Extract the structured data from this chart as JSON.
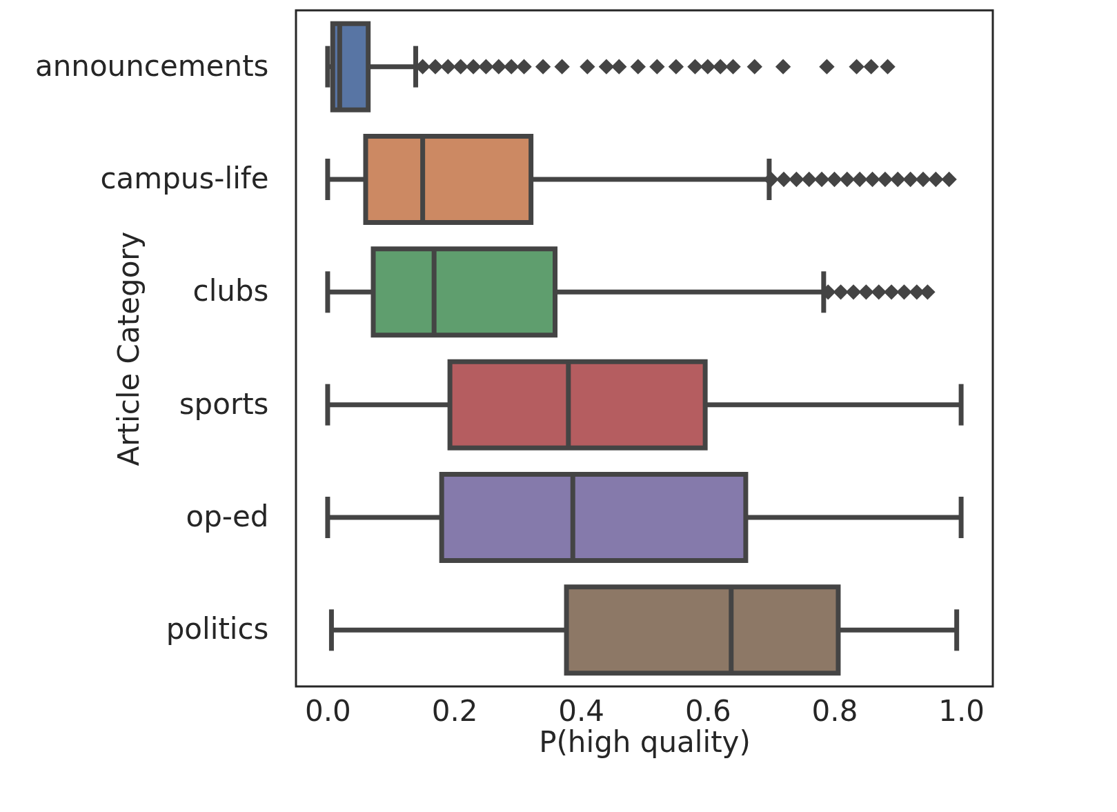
{
  "chart_data": {
    "type": "box",
    "orientation": "horizontal",
    "categories": [
      "announcements",
      "campus-life",
      "clubs",
      "sports",
      "op-ed",
      "politics"
    ],
    "colors": [
      "#5875a4",
      "#cc8963",
      "#5f9e6e",
      "#b55d60",
      "#857aab",
      "#8d7866"
    ],
    "boxes": [
      {
        "low": 0.0,
        "q1": 0.008,
        "median": 0.019,
        "q3": 0.064,
        "high": 0.139,
        "outliers": [
          0.15,
          0.17,
          0.19,
          0.21,
          0.23,
          0.25,
          0.27,
          0.29,
          0.31,
          0.34,
          0.37,
          0.41,
          0.44,
          0.46,
          0.49,
          0.52,
          0.55,
          0.58,
          0.6,
          0.62,
          0.64,
          0.674,
          0.719,
          0.788,
          0.835,
          0.858,
          0.884
        ]
      },
      {
        "low": 0.0,
        "q1": 0.06,
        "median": 0.15,
        "q3": 0.321,
        "high": 0.697,
        "outliers": [
          0.7,
          0.72,
          0.74,
          0.76,
          0.78,
          0.8,
          0.82,
          0.84,
          0.86,
          0.88,
          0.9,
          0.92,
          0.94,
          0.96,
          0.981
        ]
      },
      {
        "low": 0.0,
        "q1": 0.072,
        "median": 0.168,
        "q3": 0.359,
        "high": 0.783,
        "outliers": [
          0.79,
          0.81,
          0.83,
          0.85,
          0.87,
          0.89,
          0.91,
          0.93,
          0.947
        ]
      },
      {
        "low": 0.0,
        "q1": 0.193,
        "median": 0.38,
        "q3": 0.596,
        "high": 1.0
      },
      {
        "low": 0.0,
        "q1": 0.18,
        "median": 0.387,
        "q3": 0.66,
        "high": 1.0
      },
      {
        "low": 0.006,
        "q1": 0.377,
        "median": 0.637,
        "q3": 0.806,
        "high": 0.993
      }
    ],
    "xlabel": "P(high quality)",
    "ylabel": "Article Category",
    "xlim": [
      -0.05,
      1.05
    ],
    "xticks": [
      {
        "value": 0,
        "label": "0.0"
      },
      0.2,
      0.4,
      0.6,
      0.8,
      {
        "value": 1,
        "label": "1.0"
      }
    ],
    "grid": false
  }
}
